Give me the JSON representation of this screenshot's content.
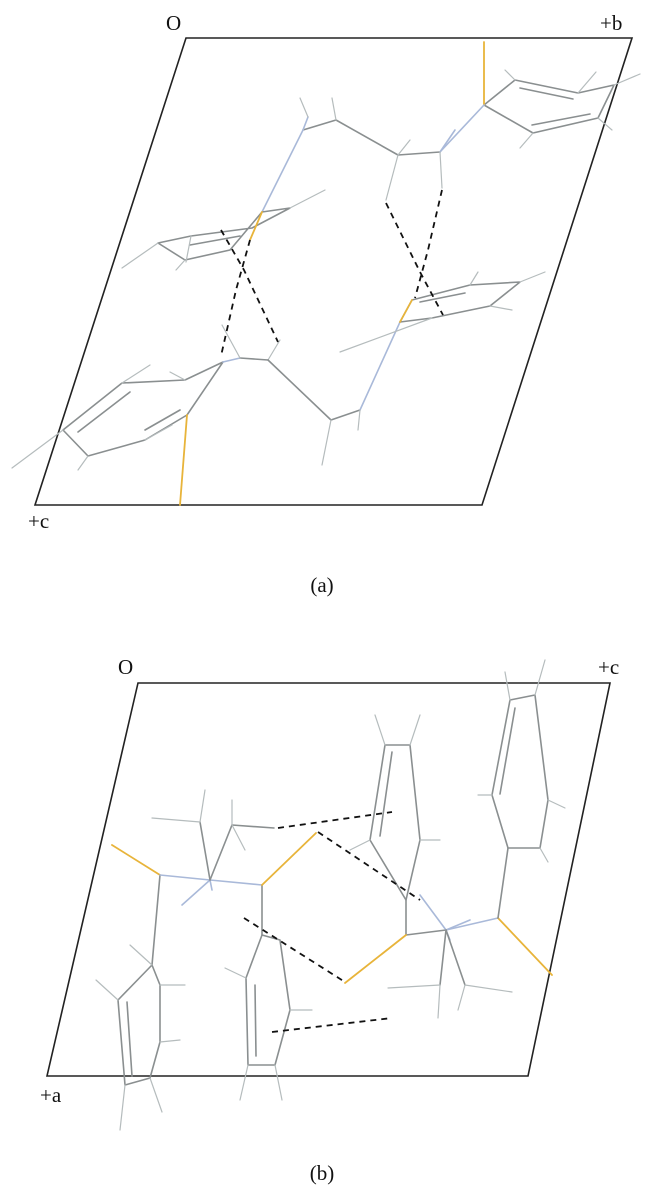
{
  "panel_a": {
    "axis_labels": {
      "origin": "O",
      "b": "+b",
      "c": "+c"
    },
    "caption": "(a)"
  },
  "panel_b": {
    "axis_labels": {
      "origin": "O",
      "c": "+c",
      "a": "+a"
    },
    "caption": "(b)"
  },
  "colors": {
    "cell_edge": "#222222",
    "carbon_bond": "#8a8f90",
    "hydrogen_bond": "#b5bcbd",
    "nitrogen_bond": "#a9b9d9",
    "sulfur_bond": "#e8b43a",
    "intermolecular_contact": "#111111"
  }
}
